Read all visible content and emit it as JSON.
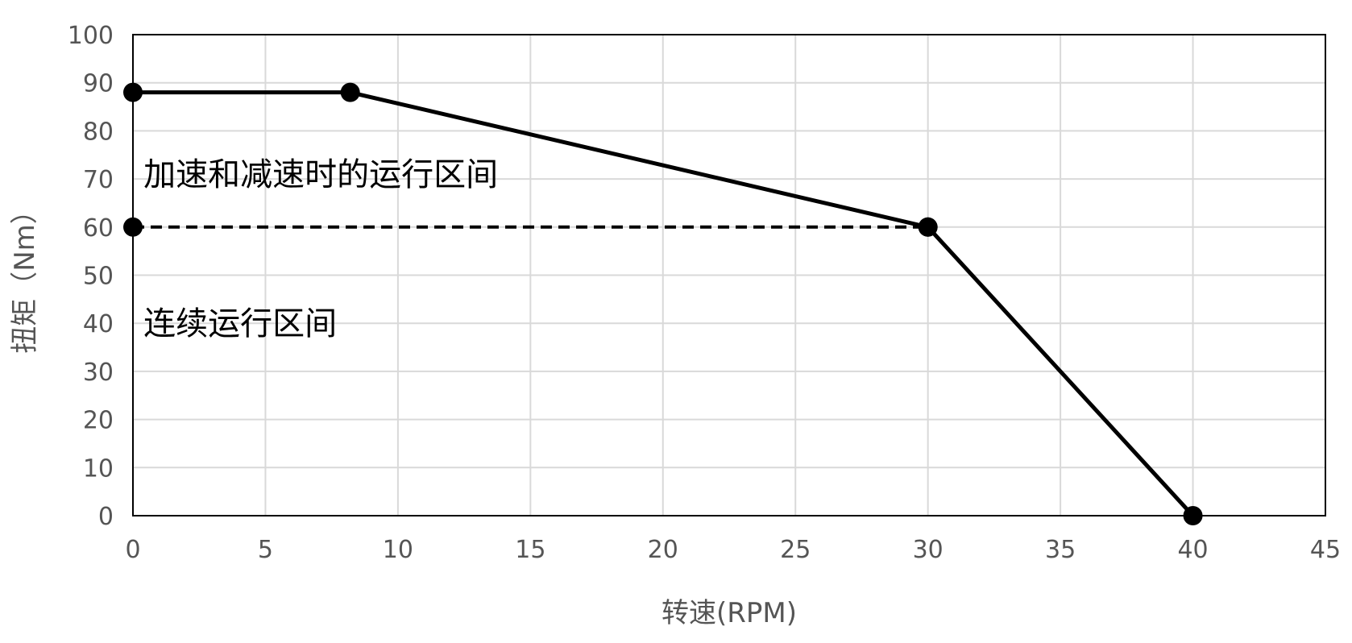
{
  "chart_data": {
    "type": "scatter",
    "xlabel": "转速(RPM)",
    "ylabel": "扭矩（Nm）",
    "xlim": [
      0,
      45
    ],
    "ylim": [
      0,
      100
    ],
    "x_ticks": [
      "0",
      "5",
      "10",
      "15",
      "20",
      "25",
      "30",
      "35",
      "40",
      "45"
    ],
    "y_ticks": [
      "0",
      "10",
      "20",
      "30",
      "40",
      "50",
      "60",
      "70",
      "80",
      "90",
      "100"
    ],
    "grid": true,
    "series": [
      {
        "style": "solid",
        "markers": true,
        "points": [
          [
            0,
            88
          ],
          [
            8.2,
            88
          ],
          [
            30,
            60
          ],
          [
            40,
            0
          ]
        ]
      },
      {
        "style": "dashed",
        "markers": true,
        "points": [
          [
            0,
            60
          ],
          [
            30,
            60
          ]
        ]
      }
    ],
    "annotations": [
      {
        "text": "加速和减速时的运行区间",
        "x": 0.4,
        "y": 71
      },
      {
        "text": "连续运行区间",
        "x": 0.4,
        "y": 40
      }
    ],
    "colors": {
      "line": "#000000",
      "grid": "#d9d9d9",
      "text": "#555555"
    }
  }
}
